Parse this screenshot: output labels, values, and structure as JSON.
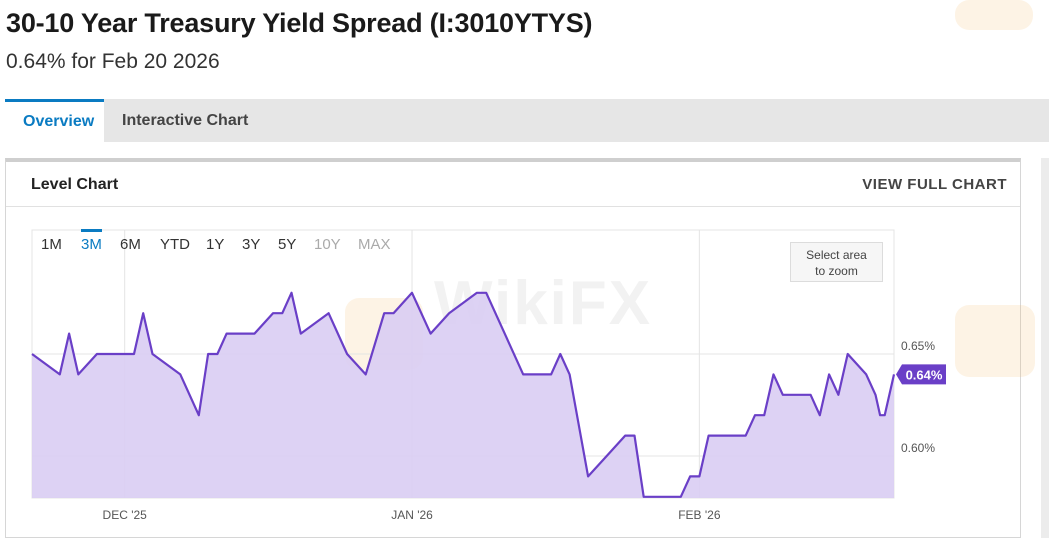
{
  "page": {
    "title": "30-10 Year Treasury Yield Spread (I:3010YTYS)",
    "subtitle": "0.64% for Feb 20 2026"
  },
  "tabs": [
    {
      "label": "Overview",
      "active": true
    },
    {
      "label": "Interactive Chart",
      "active": false
    }
  ],
  "panel": {
    "title": "Level Chart",
    "view_full_label": "VIEW FULL CHART"
  },
  "ranges": [
    {
      "label": "1M",
      "state": "normal"
    },
    {
      "label": "3M",
      "state": "active"
    },
    {
      "label": "6M",
      "state": "normal"
    },
    {
      "label": "YTD",
      "state": "normal"
    },
    {
      "label": "1Y",
      "state": "normal"
    },
    {
      "label": "3Y",
      "state": "normal"
    },
    {
      "label": "5Y",
      "state": "normal"
    },
    {
      "label": "10Y",
      "state": "disabled"
    },
    {
      "label": "MAX",
      "state": "disabled"
    }
  ],
  "zoom": {
    "line1": "Select area",
    "line2": "to zoom"
  },
  "watermark": "WikiFX",
  "colors": {
    "accent": "#0a7bc2",
    "line": "#6a3fc7",
    "fill": "#d9cdf3",
    "last_badge": "#6a3fc7"
  },
  "chart_data": {
    "type": "area",
    "title": "",
    "xlabel": "",
    "ylabel": "",
    "ylim": [
      0.58,
      0.7
    ],
    "y_ticks": [
      {
        "value": 0.65,
        "label": "0.65%"
      },
      {
        "value": 0.6,
        "label": "0.60%"
      }
    ],
    "x_ticks": [
      {
        "day": 0,
        "label": "DEC '25"
      },
      {
        "day": 31,
        "label": "JAN '26"
      },
      {
        "day": 62,
        "label": "FEB '26"
      }
    ],
    "x_range_days": [
      -10,
      81
    ],
    "last_value_label": "0.64%",
    "series": [
      {
        "values_by_day": [
          [
            -10,
            0.65
          ],
          [
            -7,
            0.64
          ],
          [
            -6,
            0.66
          ],
          [
            -5,
            0.64
          ],
          [
            -3,
            0.65
          ],
          [
            1,
            0.65
          ],
          [
            2,
            0.67
          ],
          [
            3,
            0.65
          ],
          [
            6,
            0.64
          ],
          [
            8,
            0.62
          ],
          [
            9,
            0.65
          ],
          [
            10,
            0.65
          ],
          [
            11,
            0.66
          ],
          [
            13,
            0.66
          ],
          [
            14,
            0.66
          ],
          [
            16,
            0.67
          ],
          [
            17,
            0.67
          ],
          [
            18,
            0.68
          ],
          [
            19,
            0.66
          ],
          [
            22,
            0.67
          ],
          [
            24,
            0.65
          ],
          [
            26,
            0.64
          ],
          [
            28,
            0.67
          ],
          [
            29,
            0.67
          ],
          [
            31,
            0.68
          ],
          [
            33,
            0.66
          ],
          [
            35,
            0.67
          ],
          [
            38,
            0.68
          ],
          [
            39,
            0.68
          ],
          [
            41,
            0.66
          ],
          [
            43,
            0.64
          ],
          [
            46,
            0.64
          ],
          [
            47,
            0.65
          ],
          [
            48,
            0.64
          ],
          [
            50,
            0.59
          ],
          [
            52,
            0.6
          ],
          [
            54,
            0.61
          ],
          [
            55,
            0.61
          ],
          [
            56,
            0.58
          ],
          [
            60,
            0.58
          ],
          [
            61,
            0.59
          ],
          [
            62,
            0.59
          ],
          [
            63,
            0.61
          ],
          [
            67,
            0.61
          ],
          [
            68,
            0.62
          ],
          [
            69,
            0.62
          ],
          [
            70,
            0.64
          ],
          [
            71,
            0.63
          ],
          [
            74,
            0.63
          ],
          [
            75,
            0.62
          ],
          [
            76,
            0.64
          ],
          [
            77,
            0.63
          ],
          [
            78,
            0.65
          ],
          [
            80,
            0.64
          ],
          [
            81,
            0.63
          ],
          [
            81.5,
            0.62
          ],
          [
            82,
            0.62
          ],
          [
            83,
            0.64
          ]
        ]
      }
    ]
  }
}
